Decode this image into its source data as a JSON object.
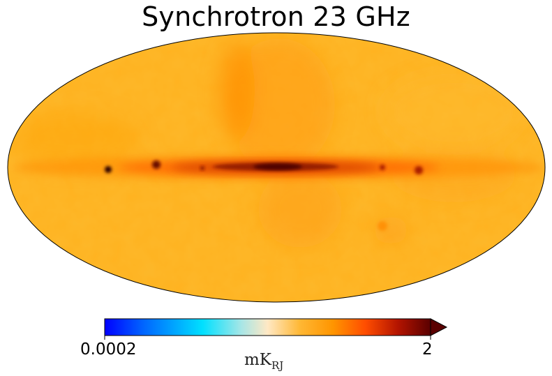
{
  "figure": {
    "title": "Synchrotron 23 GHz",
    "projection": "mollweide"
  },
  "colorbar": {
    "min_label": "0.0002",
    "max_label": "2",
    "unit_main": "mK",
    "unit_sub": "RJ",
    "extend": "max",
    "colormap_stops": [
      "#0000ff",
      "#0066ff",
      "#00ccff",
      "#00e5ff",
      "#a8e6e6",
      "#ffe8c4",
      "#ffb733",
      "#ff9900",
      "#ff6600",
      "#e63300",
      "#991100",
      "#5a0000"
    ]
  },
  "map": {
    "background_color": "#ffb21f",
    "plane_color": "#d24000",
    "core_color": "#4a0000",
    "spot_color": "#2a0000"
  }
}
